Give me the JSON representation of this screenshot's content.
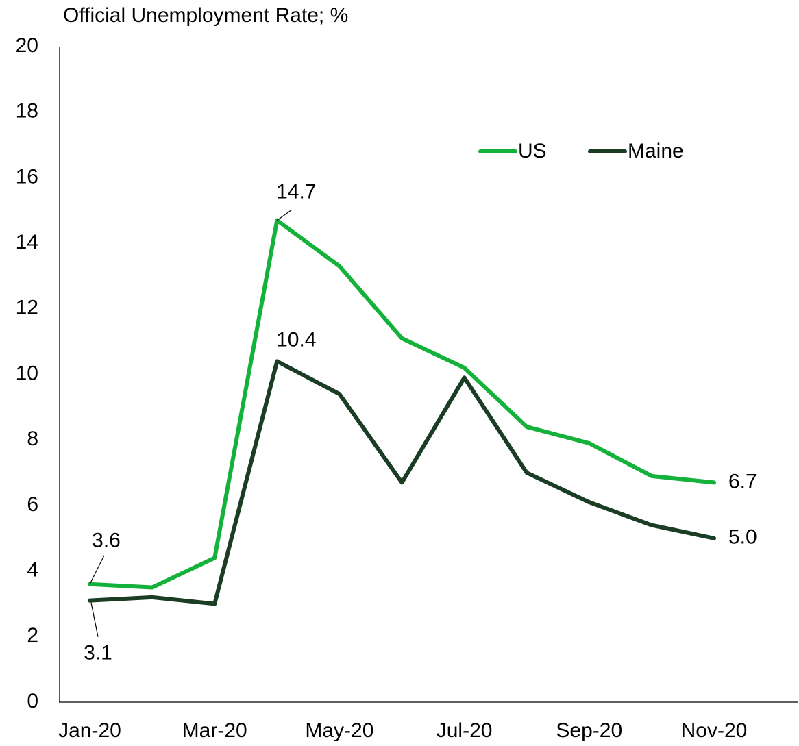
{
  "chart_data": {
    "type": "line",
    "title": "Official Unemployment Rate; %",
    "categories": [
      "Jan-20",
      null,
      "Mar-20",
      null,
      "May-20",
      null,
      "Jul-20",
      null,
      "Sep-20",
      null,
      "Nov-20"
    ],
    "series": [
      {
        "name": "US",
        "color": "#14b23a",
        "values": [
          3.6,
          3.5,
          4.4,
          14.7,
          13.3,
          11.1,
          10.2,
          8.4,
          7.9,
          6.9,
          6.7
        ],
        "value_labels": [
          "3.6",
          null,
          null,
          "14.7",
          null,
          null,
          null,
          null,
          null,
          null,
          "6.7"
        ]
      },
      {
        "name": "Maine",
        "color": "#1b3d23",
        "values": [
          3.1,
          3.2,
          3.0,
          10.4,
          9.4,
          6.7,
          9.9,
          7.0,
          6.1,
          5.4,
          5.0
        ],
        "value_labels": [
          "3.1",
          null,
          null,
          "10.4",
          null,
          null,
          null,
          null,
          null,
          null,
          "5.0"
        ]
      }
    ],
    "ylim": [
      0,
      20
    ],
    "yticks": [
      0,
      2,
      4,
      6,
      8,
      10,
      12,
      14,
      16,
      18,
      20
    ],
    "grid": false,
    "legend": "upper right"
  }
}
